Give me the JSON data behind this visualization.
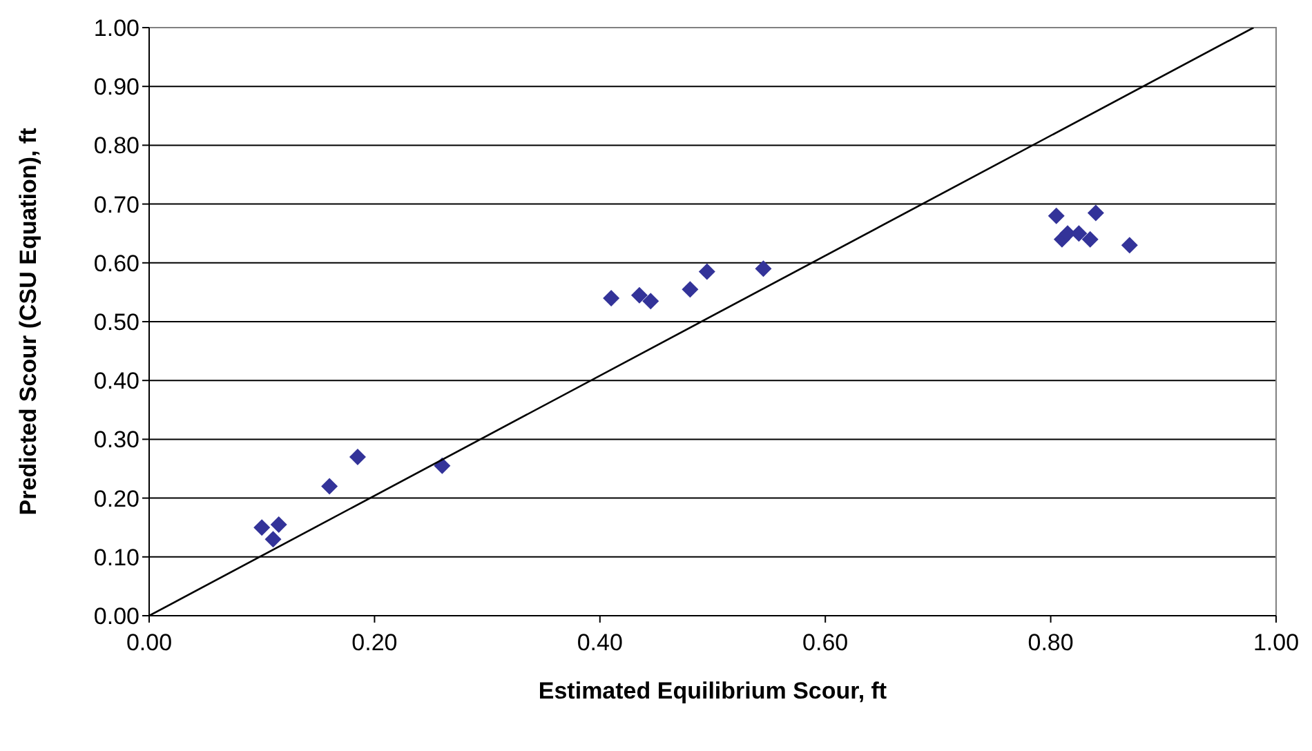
{
  "chart_data": {
    "type": "scatter",
    "xlabel": "Estimated Equilibrium Scour, ft",
    "ylabel": "Predicted Scour (CSU Equation), ft",
    "xlim": [
      0,
      1
    ],
    "xticks": [
      {
        "value": 0,
        "label": "0.00"
      },
      {
        "value": 0.2,
        "label": "0.20"
      },
      {
        "value": 0.4,
        "label": "0.40"
      },
      {
        "value": 0.6,
        "label": "0.60"
      },
      {
        "value": 0.8,
        "label": "0.80"
      },
      {
        "value": 1,
        "label": "1.00"
      }
    ],
    "ylim": [
      0,
      1
    ],
    "yticks": [
      {
        "value": 0,
        "label": "0.00"
      },
      {
        "value": 0.1,
        "label": "0.10"
      },
      {
        "value": 0.2,
        "label": "0.20"
      },
      {
        "value": 0.3,
        "label": "0.30"
      },
      {
        "value": 0.4,
        "label": "0.40"
      },
      {
        "value": 0.5,
        "label": "0.50"
      },
      {
        "value": 0.6,
        "label": "0.60"
      },
      {
        "value": 0.7,
        "label": "0.70"
      },
      {
        "value": 0.8,
        "label": "0.80"
      },
      {
        "value": 0.9,
        "label": "0.90"
      },
      {
        "value": 1,
        "label": "1.00"
      }
    ],
    "grid": "y",
    "marker": "diamond",
    "series": [
      {
        "color": "#333399",
        "x": [
          0.1,
          0.11,
          0.115,
          0.16,
          0.185,
          0.26,
          0.41,
          0.435,
          0.445,
          0.48,
          0.495,
          0.545,
          0.805,
          0.81,
          0.815,
          0.825,
          0.835,
          0.84,
          0.87
        ],
        "values": [
          0.15,
          0.13,
          0.155,
          0.22,
          0.27,
          0.255,
          0.54,
          0.545,
          0.535,
          0.555,
          0.585,
          0.59,
          0.68,
          0.64,
          0.65,
          0.65,
          0.64,
          0.685,
          0.63
        ]
      },
      {
        "type": "line",
        "color": "#000000",
        "marker": "none",
        "x": [
          0,
          0.98
        ],
        "values": [
          0,
          1.0
        ]
      }
    ]
  }
}
